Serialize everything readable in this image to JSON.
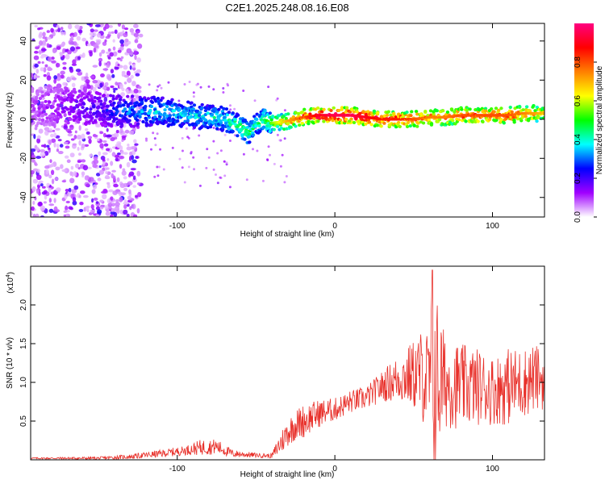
{
  "title": "C2E1.2025.248.08.16.E08",
  "chart_data": [
    {
      "type": "heatmap",
      "xlabel": "Height of straight line (km)",
      "ylabel": "Frequency (Hz)",
      "xlim": [
        -193,
        133
      ],
      "ylim": [
        -50,
        49
      ],
      "x_ticks": [
        -100,
        0,
        100
      ],
      "x_tick_labels": [
        "-100",
        "0",
        "100"
      ],
      "y_ticks": [
        -40,
        -20,
        0,
        20,
        40
      ],
      "y_tick_labels": [
        "-40",
        "-20",
        "0",
        "20",
        "40"
      ],
      "colorbar": {
        "label": "Normalized spectral amplitude",
        "range": [
          0,
          1
        ],
        "ticks": [
          0,
          0.2,
          0.4,
          0.6,
          0.8
        ],
        "tick_labels": [
          "0.0",
          "0.2",
          "0.4",
          "0.6",
          "0.8"
        ],
        "colors": [
          "#ffffff",
          "#a000ff",
          "#0000ff",
          "#00ffff",
          "#00ff00",
          "#ffff00",
          "#ff8000",
          "#ff0000",
          "#ff0080"
        ]
      },
      "ridge": {
        "x": [
          -190,
          -170,
          -150,
          -130,
          -110,
          -90,
          -70,
          -60,
          -55,
          -50,
          -45,
          -40,
          -30,
          -20,
          -10,
          0,
          10,
          20,
          30,
          40,
          50,
          60,
          70,
          80,
          90,
          100,
          110,
          120,
          130
        ],
        "freq": [
          6,
          7,
          5,
          4,
          4,
          2,
          0,
          -4,
          -7,
          -3,
          0,
          -2,
          -1,
          1,
          2,
          2,
          2,
          1,
          0,
          0,
          0,
          1,
          1,
          2,
          2,
          2,
          2,
          3,
          3
        ],
        "amplitude": [
          0.1,
          0.15,
          0.2,
          0.3,
          0.35,
          0.35,
          0.4,
          0.45,
          0.45,
          0.4,
          0.45,
          0.55,
          0.7,
          0.8,
          0.9,
          0.95,
          0.95,
          0.9,
          0.85,
          0.85,
          0.8,
          0.75,
          0.75,
          0.8,
          0.8,
          0.8,
          0.8,
          0.75,
          0.7
        ]
      }
    },
    {
      "type": "line",
      "xlabel": "Height of straight line (km)",
      "ylabel": "SNR (10 * v/v)",
      "y_scale_label": "(x10",
      "y_scale_exponent": "4",
      "xlim": [
        -193,
        133
      ],
      "ylim": [
        0,
        2.5
      ],
      "x_ticks": [
        -100,
        0,
        100
      ],
      "x_tick_labels": [
        "-100",
        "0",
        "100"
      ],
      "y_ticks": [
        0.5,
        1.0,
        1.5,
        2.0
      ],
      "y_tick_labels": [
        "0.5",
        "1.0",
        "1.5",
        "2.0"
      ],
      "series": [
        {
          "name": "SNR",
          "color": "#e8302a",
          "envelope_x": [
            -193,
            -150,
            -130,
            -110,
            -95,
            -85,
            -75,
            -65,
            -50,
            -40,
            -35,
            -30,
            -25,
            -20,
            -15,
            -10,
            0,
            10,
            20,
            30,
            40,
            50,
            55,
            60,
            62,
            70,
            80,
            90,
            100,
            110,
            120,
            125,
            133
          ],
          "envelope_mean": [
            0.02,
            0.02,
            0.04,
            0.08,
            0.12,
            0.16,
            0.17,
            0.08,
            0.06,
            0.05,
            0.2,
            0.35,
            0.45,
            0.5,
            0.55,
            0.6,
            0.65,
            0.75,
            0.8,
            0.95,
            1.05,
            1.1,
            1.1,
            1.0,
            1.05,
            1.0,
            0.95,
            0.95,
            0.9,
            0.95,
            1.0,
            1.05,
            1.05
          ],
          "envelope_spread": [
            0.01,
            0.02,
            0.03,
            0.05,
            0.06,
            0.1,
            0.1,
            0.05,
            0.03,
            0.03,
            0.15,
            0.18,
            0.2,
            0.22,
            0.2,
            0.18,
            0.15,
            0.15,
            0.15,
            0.2,
            0.3,
            0.45,
            0.6,
            0.7,
            1.4,
            0.6,
            0.55,
            0.5,
            0.45,
            0.5,
            0.45,
            0.45,
            0.4
          ],
          "peak": {
            "x": 62,
            "y": 2.45
          }
        }
      ]
    }
  ]
}
